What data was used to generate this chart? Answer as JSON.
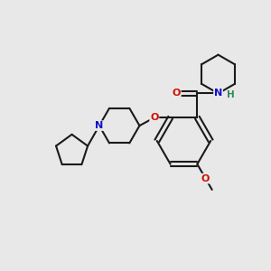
{
  "bg_color": "#e8e8e8",
  "bond_color": "#1a1a1a",
  "N_color": "#1010cc",
  "O_color": "#cc1100",
  "H_color": "#2e8b57",
  "lw": 1.5,
  "fs": 8.0,
  "xlim": [
    0,
    10
  ],
  "ylim": [
    0,
    10
  ]
}
